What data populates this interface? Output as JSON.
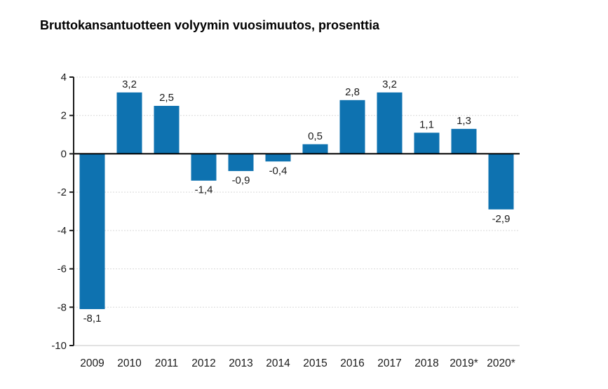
{
  "chart_data": {
    "type": "bar",
    "title": "Bruttokansantuotteen volyymin vuosimuutos, prosenttia",
    "categories": [
      "2009",
      "2010",
      "2011",
      "2012",
      "2013",
      "2014",
      "2015",
      "2016",
      "2017",
      "2018",
      "2019*",
      "2020*"
    ],
    "values": [
      -8.1,
      3.2,
      2.5,
      -1.4,
      -0.9,
      -0.4,
      0.5,
      2.8,
      3.2,
      1.1,
      1.3,
      -2.9
    ],
    "value_labels": [
      "-8,1",
      "3,2",
      "2,5",
      "-1,4",
      "-0,9",
      "-0,4",
      "0,5",
      "2,8",
      "3,2",
      "1,1",
      "1,3",
      "-2,9"
    ],
    "xlabel": "",
    "ylabel": "",
    "ylim": [
      -10,
      4
    ],
    "yticks": [
      4,
      2,
      0,
      -2,
      -4,
      -6,
      -8,
      -10
    ],
    "grid": true,
    "legend": "none",
    "bar_color": "#0e72b0",
    "axis_color": "#1a1a1a",
    "zero_line_color": "#000000",
    "grid_color": "#d9d9d9",
    "text_color": "#1a1a1a"
  }
}
